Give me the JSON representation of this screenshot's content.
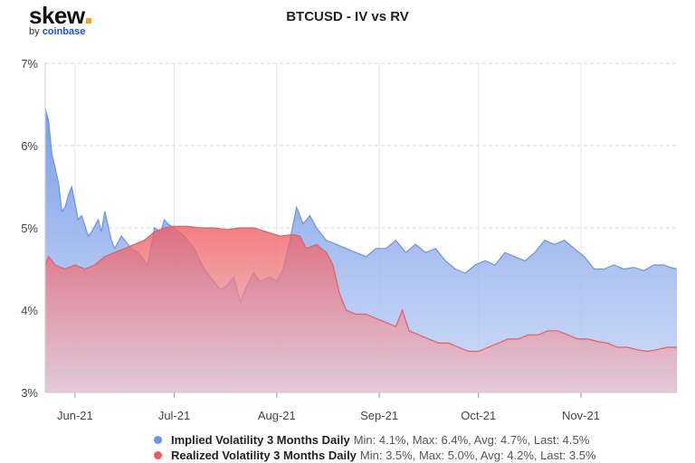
{
  "brand": {
    "name": "skew",
    "dot": ".",
    "by": "by",
    "partner": "coinbase"
  },
  "chart_data": {
    "type": "area",
    "title": "BTCUSD - IV vs RV",
    "ylim": [
      3,
      7
    ],
    "yticks": [
      3,
      4,
      5,
      6,
      7
    ],
    "ytick_labels": [
      "3%",
      "4%",
      "5%",
      "6%",
      "7%"
    ],
    "x_start": "2021-05-23",
    "x_end": "2021-11-30",
    "xtick_dates": [
      "2021-06-01",
      "2021-07-01",
      "2021-08-01",
      "2021-09-01",
      "2021-10-01",
      "2021-11-01"
    ],
    "xtick_labels": [
      "Jun-21",
      "Jul-21",
      "Aug-21",
      "Sep-21",
      "Oct-21",
      "Nov-21"
    ],
    "grid": true,
    "legend_position": "bottom",
    "series": [
      {
        "name": "Implied Volatility 3 Months Daily",
        "stats": "Min: 4.1%, Max: 6.4%, Avg: 4.7%, Last: 4.5%",
        "color": "#6b93e6",
        "points": [
          [
            "2021-05-23",
            6.45
          ],
          [
            "2021-05-24",
            6.3
          ],
          [
            "2021-05-25",
            5.9
          ],
          [
            "2021-05-27",
            5.55
          ],
          [
            "2021-05-28",
            5.2
          ],
          [
            "2021-05-29",
            5.25
          ],
          [
            "2021-05-30",
            5.4
          ],
          [
            "2021-05-31",
            5.5
          ],
          [
            "2021-06-02",
            5.1
          ],
          [
            "2021-06-03",
            5.15
          ],
          [
            "2021-06-05",
            4.9
          ],
          [
            "2021-06-06",
            4.95
          ],
          [
            "2021-06-08",
            5.1
          ],
          [
            "2021-06-09",
            4.95
          ],
          [
            "2021-06-10",
            5.2
          ],
          [
            "2021-06-12",
            4.85
          ],
          [
            "2021-06-13",
            4.75
          ],
          [
            "2021-06-15",
            4.9
          ],
          [
            "2021-06-17",
            4.8
          ],
          [
            "2021-06-18",
            4.75
          ],
          [
            "2021-06-20",
            4.7
          ],
          [
            "2021-06-23",
            4.55
          ],
          [
            "2021-06-25",
            5.0
          ],
          [
            "2021-06-27",
            4.95
          ],
          [
            "2021-06-28",
            5.1
          ],
          [
            "2021-06-29",
            5.05
          ],
          [
            "2021-07-01",
            5.0
          ],
          [
            "2021-07-04",
            4.9
          ],
          [
            "2021-07-07",
            4.75
          ],
          [
            "2021-07-10",
            4.5
          ],
          [
            "2021-07-13",
            4.35
          ],
          [
            "2021-07-15",
            4.25
          ],
          [
            "2021-07-17",
            4.3
          ],
          [
            "2021-07-19",
            4.4
          ],
          [
            "2021-07-21",
            4.1
          ],
          [
            "2021-07-23",
            4.3
          ],
          [
            "2021-07-25",
            4.45
          ],
          [
            "2021-07-27",
            4.35
          ],
          [
            "2021-07-30",
            4.4
          ],
          [
            "2021-08-01",
            4.35
          ],
          [
            "2021-08-03",
            4.5
          ],
          [
            "2021-08-05",
            4.85
          ],
          [
            "2021-08-07",
            5.25
          ],
          [
            "2021-08-09",
            5.05
          ],
          [
            "2021-08-11",
            5.15
          ],
          [
            "2021-08-13",
            5.0
          ],
          [
            "2021-08-16",
            4.85
          ],
          [
            "2021-08-19",
            4.8
          ],
          [
            "2021-08-22",
            4.75
          ],
          [
            "2021-08-25",
            4.7
          ],
          [
            "2021-08-28",
            4.65
          ],
          [
            "2021-08-31",
            4.75
          ],
          [
            "2021-09-03",
            4.75
          ],
          [
            "2021-09-06",
            4.85
          ],
          [
            "2021-09-09",
            4.7
          ],
          [
            "2021-09-12",
            4.8
          ],
          [
            "2021-09-15",
            4.7
          ],
          [
            "2021-09-18",
            4.75
          ],
          [
            "2021-09-21",
            4.6
          ],
          [
            "2021-09-24",
            4.5
          ],
          [
            "2021-09-27",
            4.45
          ],
          [
            "2021-09-30",
            4.55
          ],
          [
            "2021-10-03",
            4.6
          ],
          [
            "2021-10-06",
            4.55
          ],
          [
            "2021-10-09",
            4.7
          ],
          [
            "2021-10-12",
            4.65
          ],
          [
            "2021-10-15",
            4.6
          ],
          [
            "2021-10-18",
            4.7
          ],
          [
            "2021-10-21",
            4.85
          ],
          [
            "2021-10-24",
            4.8
          ],
          [
            "2021-10-27",
            4.85
          ],
          [
            "2021-10-30",
            4.75
          ],
          [
            "2021-11-02",
            4.65
          ],
          [
            "2021-11-05",
            4.5
          ],
          [
            "2021-11-08",
            4.5
          ],
          [
            "2021-11-11",
            4.55
          ],
          [
            "2021-11-14",
            4.5
          ],
          [
            "2021-11-17",
            4.52
          ],
          [
            "2021-11-20",
            4.48
          ],
          [
            "2021-11-23",
            4.55
          ],
          [
            "2021-11-26",
            4.55
          ],
          [
            "2021-11-28",
            4.52
          ],
          [
            "2021-11-30",
            4.5
          ]
        ]
      },
      {
        "name": "Realized Volatility 3 Months Daily",
        "stats": "Min: 3.5%, Max: 5.0%, Avg: 4.2%, Last: 3.5%",
        "color": "#ee5a5f",
        "points": [
          [
            "2021-05-23",
            4.55
          ],
          [
            "2021-05-24",
            4.65
          ],
          [
            "2021-05-26",
            4.55
          ],
          [
            "2021-05-29",
            4.5
          ],
          [
            "2021-06-01",
            4.55
          ],
          [
            "2021-06-04",
            4.5
          ],
          [
            "2021-06-07",
            4.55
          ],
          [
            "2021-06-10",
            4.65
          ],
          [
            "2021-06-13",
            4.7
          ],
          [
            "2021-06-16",
            4.75
          ],
          [
            "2021-06-19",
            4.8
          ],
          [
            "2021-06-22",
            4.85
          ],
          [
            "2021-06-25",
            4.95
          ],
          [
            "2021-06-28",
            5.0
          ],
          [
            "2021-07-01",
            5.02
          ],
          [
            "2021-07-05",
            5.02
          ],
          [
            "2021-07-09",
            5.0
          ],
          [
            "2021-07-13",
            5.0
          ],
          [
            "2021-07-17",
            4.98
          ],
          [
            "2021-07-21",
            5.0
          ],
          [
            "2021-07-25",
            5.0
          ],
          [
            "2021-07-29",
            4.95
          ],
          [
            "2021-08-02",
            4.9
          ],
          [
            "2021-08-06",
            4.92
          ],
          [
            "2021-08-08",
            4.9
          ],
          [
            "2021-08-10",
            4.75
          ],
          [
            "2021-08-13",
            4.8
          ],
          [
            "2021-08-16",
            4.7
          ],
          [
            "2021-08-18",
            4.55
          ],
          [
            "2021-08-20",
            4.2
          ],
          [
            "2021-08-22",
            4.0
          ],
          [
            "2021-08-25",
            3.95
          ],
          [
            "2021-08-28",
            3.95
          ],
          [
            "2021-08-31",
            3.9
          ],
          [
            "2021-09-03",
            3.85
          ],
          [
            "2021-09-06",
            3.8
          ],
          [
            "2021-09-08",
            4.0
          ],
          [
            "2021-09-10",
            3.75
          ],
          [
            "2021-09-13",
            3.7
          ],
          [
            "2021-09-16",
            3.65
          ],
          [
            "2021-09-19",
            3.6
          ],
          [
            "2021-09-22",
            3.6
          ],
          [
            "2021-09-25",
            3.55
          ],
          [
            "2021-09-28",
            3.5
          ],
          [
            "2021-10-01",
            3.5
          ],
          [
            "2021-10-04",
            3.55
          ],
          [
            "2021-10-07",
            3.6
          ],
          [
            "2021-10-10",
            3.65
          ],
          [
            "2021-10-13",
            3.65
          ],
          [
            "2021-10-16",
            3.7
          ],
          [
            "2021-10-19",
            3.7
          ],
          [
            "2021-10-22",
            3.75
          ],
          [
            "2021-10-25",
            3.75
          ],
          [
            "2021-10-28",
            3.7
          ],
          [
            "2021-10-31",
            3.65
          ],
          [
            "2021-11-03",
            3.65
          ],
          [
            "2021-11-06",
            3.62
          ],
          [
            "2021-11-09",
            3.6
          ],
          [
            "2021-11-12",
            3.55
          ],
          [
            "2021-11-15",
            3.55
          ],
          [
            "2021-11-18",
            3.52
          ],
          [
            "2021-11-21",
            3.5
          ],
          [
            "2021-11-24",
            3.52
          ],
          [
            "2021-11-27",
            3.55
          ],
          [
            "2021-11-30",
            3.55
          ]
        ]
      }
    ]
  }
}
